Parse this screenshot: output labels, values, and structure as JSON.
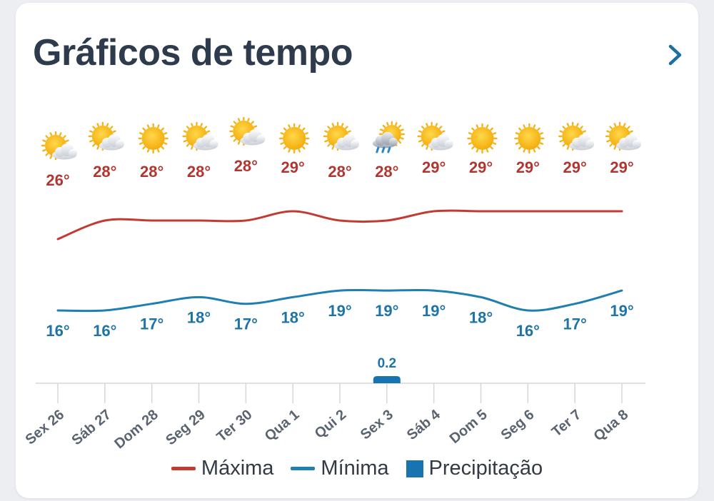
{
  "header": {
    "title": "Gráficos de tempo"
  },
  "colors": {
    "max": "#c23b33",
    "min": "#1f7fb0",
    "precip": "#1874b0",
    "label_max": "#b23630",
    "label_min": "#1e74a6",
    "axis_text": "#5a6370"
  },
  "chart_data": {
    "type": "line",
    "categories": [
      "Sex 26",
      "Sáb 27",
      "Dom 28",
      "Seg 29",
      "Ter 30",
      "Qua 1",
      "Qui 2",
      "Sex 3",
      "Sáb 4",
      "Dom 5",
      "Seg 6",
      "Ter 7",
      "Qua 8"
    ],
    "icons": [
      "sun-cloud-icon",
      "sun-cloud-icon",
      "sun-icon",
      "sun-cloud-icon",
      "sun-cloud-icon",
      "sun-icon",
      "sun-cloud-icon",
      "sun-rain-cloud-icon",
      "sun-cloud-icon",
      "sun-icon",
      "sun-icon",
      "sun-cloud-icon",
      "sun-cloud-icon"
    ],
    "series": [
      {
        "name": "Máxima",
        "values": [
          26,
          28,
          28,
          28,
          28,
          29,
          28,
          28,
          29,
          29,
          29,
          29,
          29
        ],
        "labels": [
          "26°",
          "28°",
          "28°",
          "28°",
          "28°",
          "29°",
          "28°",
          "28°",
          "29°",
          "29°",
          "29°",
          "29°",
          "29°"
        ]
      },
      {
        "name": "Mínima",
        "values": [
          16,
          16,
          17,
          18,
          17,
          18,
          19,
          19,
          19,
          18,
          16,
          17,
          19
        ],
        "labels": [
          "16°",
          "16°",
          "17°",
          "18°",
          "17°",
          "18°",
          "19°",
          "19°",
          "19°",
          "18°",
          "16°",
          "17°",
          "19°"
        ]
      },
      {
        "name": "Precipitação",
        "values": [
          0,
          0,
          0,
          0,
          0,
          0,
          0,
          0.2,
          0,
          0,
          0,
          0,
          0
        ],
        "labels": [
          "",
          "",
          "",
          "",
          "",
          "",
          "",
          "0.2",
          "",
          "",
          "",
          "",
          ""
        ]
      }
    ],
    "legend": [
      {
        "name": "Máxima",
        "kind": "line"
      },
      {
        "name": "Mínima",
        "kind": "line"
      },
      {
        "name": "Precipitação",
        "kind": "box"
      }
    ]
  }
}
